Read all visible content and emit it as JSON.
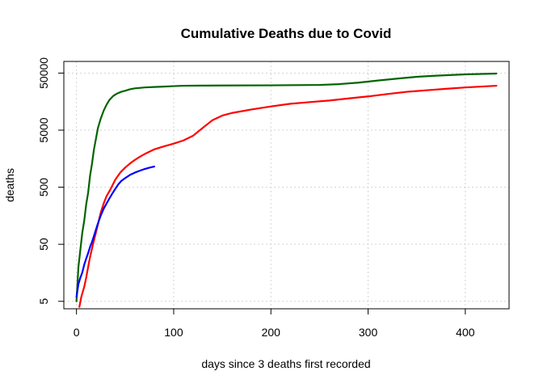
{
  "chart_data": {
    "type": "line",
    "title": "Cumulative Deaths due to Covid",
    "xlabel": "days since 3 deaths first recorded",
    "ylabel": "deaths",
    "xlim": [
      -13,
      445
    ],
    "ylim": [
      3.7,
      80000
    ],
    "y_scale": "log",
    "grid": true,
    "legend": "none",
    "x_ticks": [
      0,
      100,
      200,
      300,
      400
    ],
    "y_ticks": [
      5,
      50,
      500,
      5000,
      50000
    ],
    "series": [
      {
        "color": "#006400",
        "x": [
          0,
          2,
          4,
          6,
          8,
          10,
          12,
          14,
          16,
          18,
          20,
          22,
          25,
          28,
          31,
          34,
          38,
          42,
          46,
          50,
          55,
          60,
          70,
          80,
          90,
          100,
          110,
          130,
          150,
          200,
          250,
          270,
          290,
          310,
          330,
          350,
          370,
          400,
          432
        ],
        "y": [
          5,
          20,
          40,
          80,
          130,
          250,
          400,
          800,
          1300,
          2300,
          3500,
          5400,
          8000,
          11000,
          14000,
          17000,
          20000,
          22000,
          23500,
          24500,
          26000,
          27000,
          28000,
          28500,
          29000,
          29500,
          30000,
          30200,
          30300,
          30500,
          31000,
          32000,
          34000,
          37000,
          40000,
          43000,
          45000,
          47500,
          49000
        ]
      },
      {
        "color": "#ff0000",
        "x": [
          3,
          5,
          8,
          10,
          12,
          14,
          17,
          20,
          22,
          25,
          28,
          31,
          35,
          40,
          45,
          50,
          55,
          60,
          65,
          70,
          80,
          90,
          100,
          110,
          120,
          130,
          140,
          150,
          160,
          180,
          200,
          220,
          240,
          260,
          280,
          300,
          320,
          340,
          360,
          380,
          400,
          432
        ],
        "y": [
          4,
          6,
          9,
          13,
          20,
          30,
          50,
          80,
          110,
          180,
          260,
          350,
          460,
          680,
          900,
          1100,
          1300,
          1500,
          1700,
          1900,
          2300,
          2600,
          2900,
          3300,
          4000,
          5500,
          7500,
          9000,
          10000,
          11500,
          13000,
          14500,
          15500,
          16500,
          18000,
          19500,
          21500,
          23500,
          25000,
          26500,
          28000,
          30000
        ]
      },
      {
        "color": "#0000ff",
        "x": [
          0,
          2,
          4,
          6,
          8,
          10,
          12,
          14,
          16,
          18,
          20,
          22,
          25,
          28,
          31,
          34,
          37,
          40,
          43,
          46,
          50,
          55,
          60,
          65,
          70,
          75,
          80
        ],
        "y": [
          6,
          10,
          13,
          16,
          22,
          28,
          35,
          45,
          55,
          70,
          90,
          115,
          160,
          210,
          260,
          320,
          390,
          470,
          560,
          640,
          720,
          820,
          900,
          970,
          1040,
          1100,
          1150
        ]
      }
    ]
  }
}
